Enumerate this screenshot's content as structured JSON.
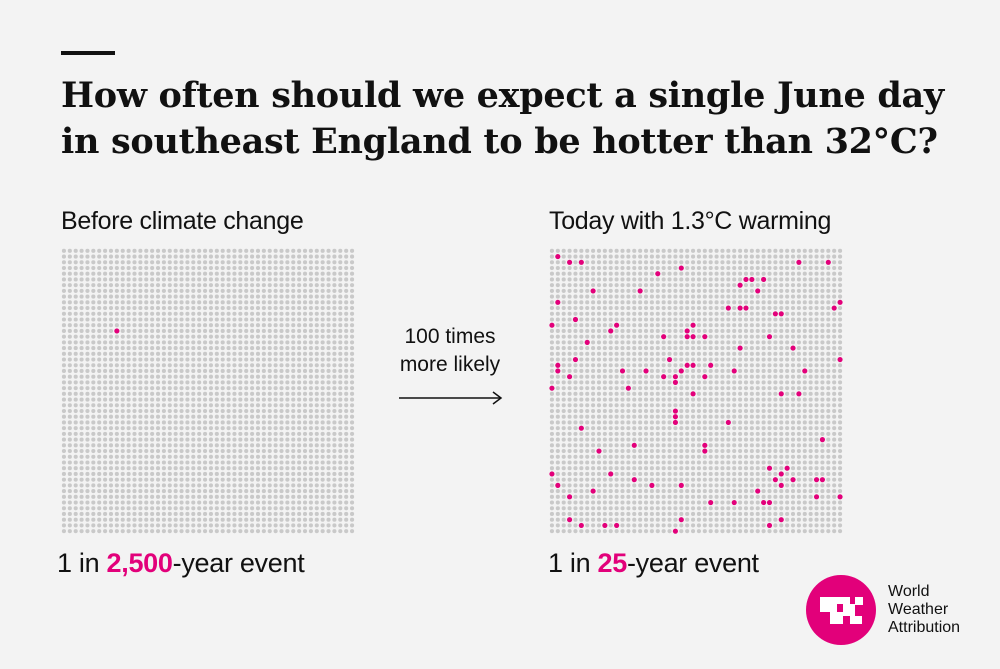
{
  "title": {
    "line1": "How often should we expect a single June day",
    "line2": "in southeast England to be hotter than 32°C?"
  },
  "comparison": {
    "text_line1": "100 times",
    "text_line2": "more likely"
  },
  "chart_data": [
    {
      "type": "waffle",
      "title": "Before climate change",
      "total_cells": 2500,
      "grid": [
        50,
        50
      ],
      "highlighted": 1,
      "caption_prefix": "1 in ",
      "caption_value": "2,500",
      "caption_suffix": "-year event"
    },
    {
      "type": "waffle",
      "title": "Today with 1.3°C warming",
      "total_cells": 2500,
      "grid": [
        50,
        50
      ],
      "highlighted": 100,
      "caption_prefix": "1 in ",
      "caption_value": "25",
      "caption_suffix": "-year event"
    }
  ],
  "colors": {
    "background": "#f3f3f3",
    "dot": "#c9c9c9",
    "highlight": "#e2007a",
    "text": "#111111"
  },
  "brand": {
    "line1": "World",
    "line2": "Weather",
    "line3": "Attribution",
    "logo_icon": "wwa-logo-icon"
  }
}
